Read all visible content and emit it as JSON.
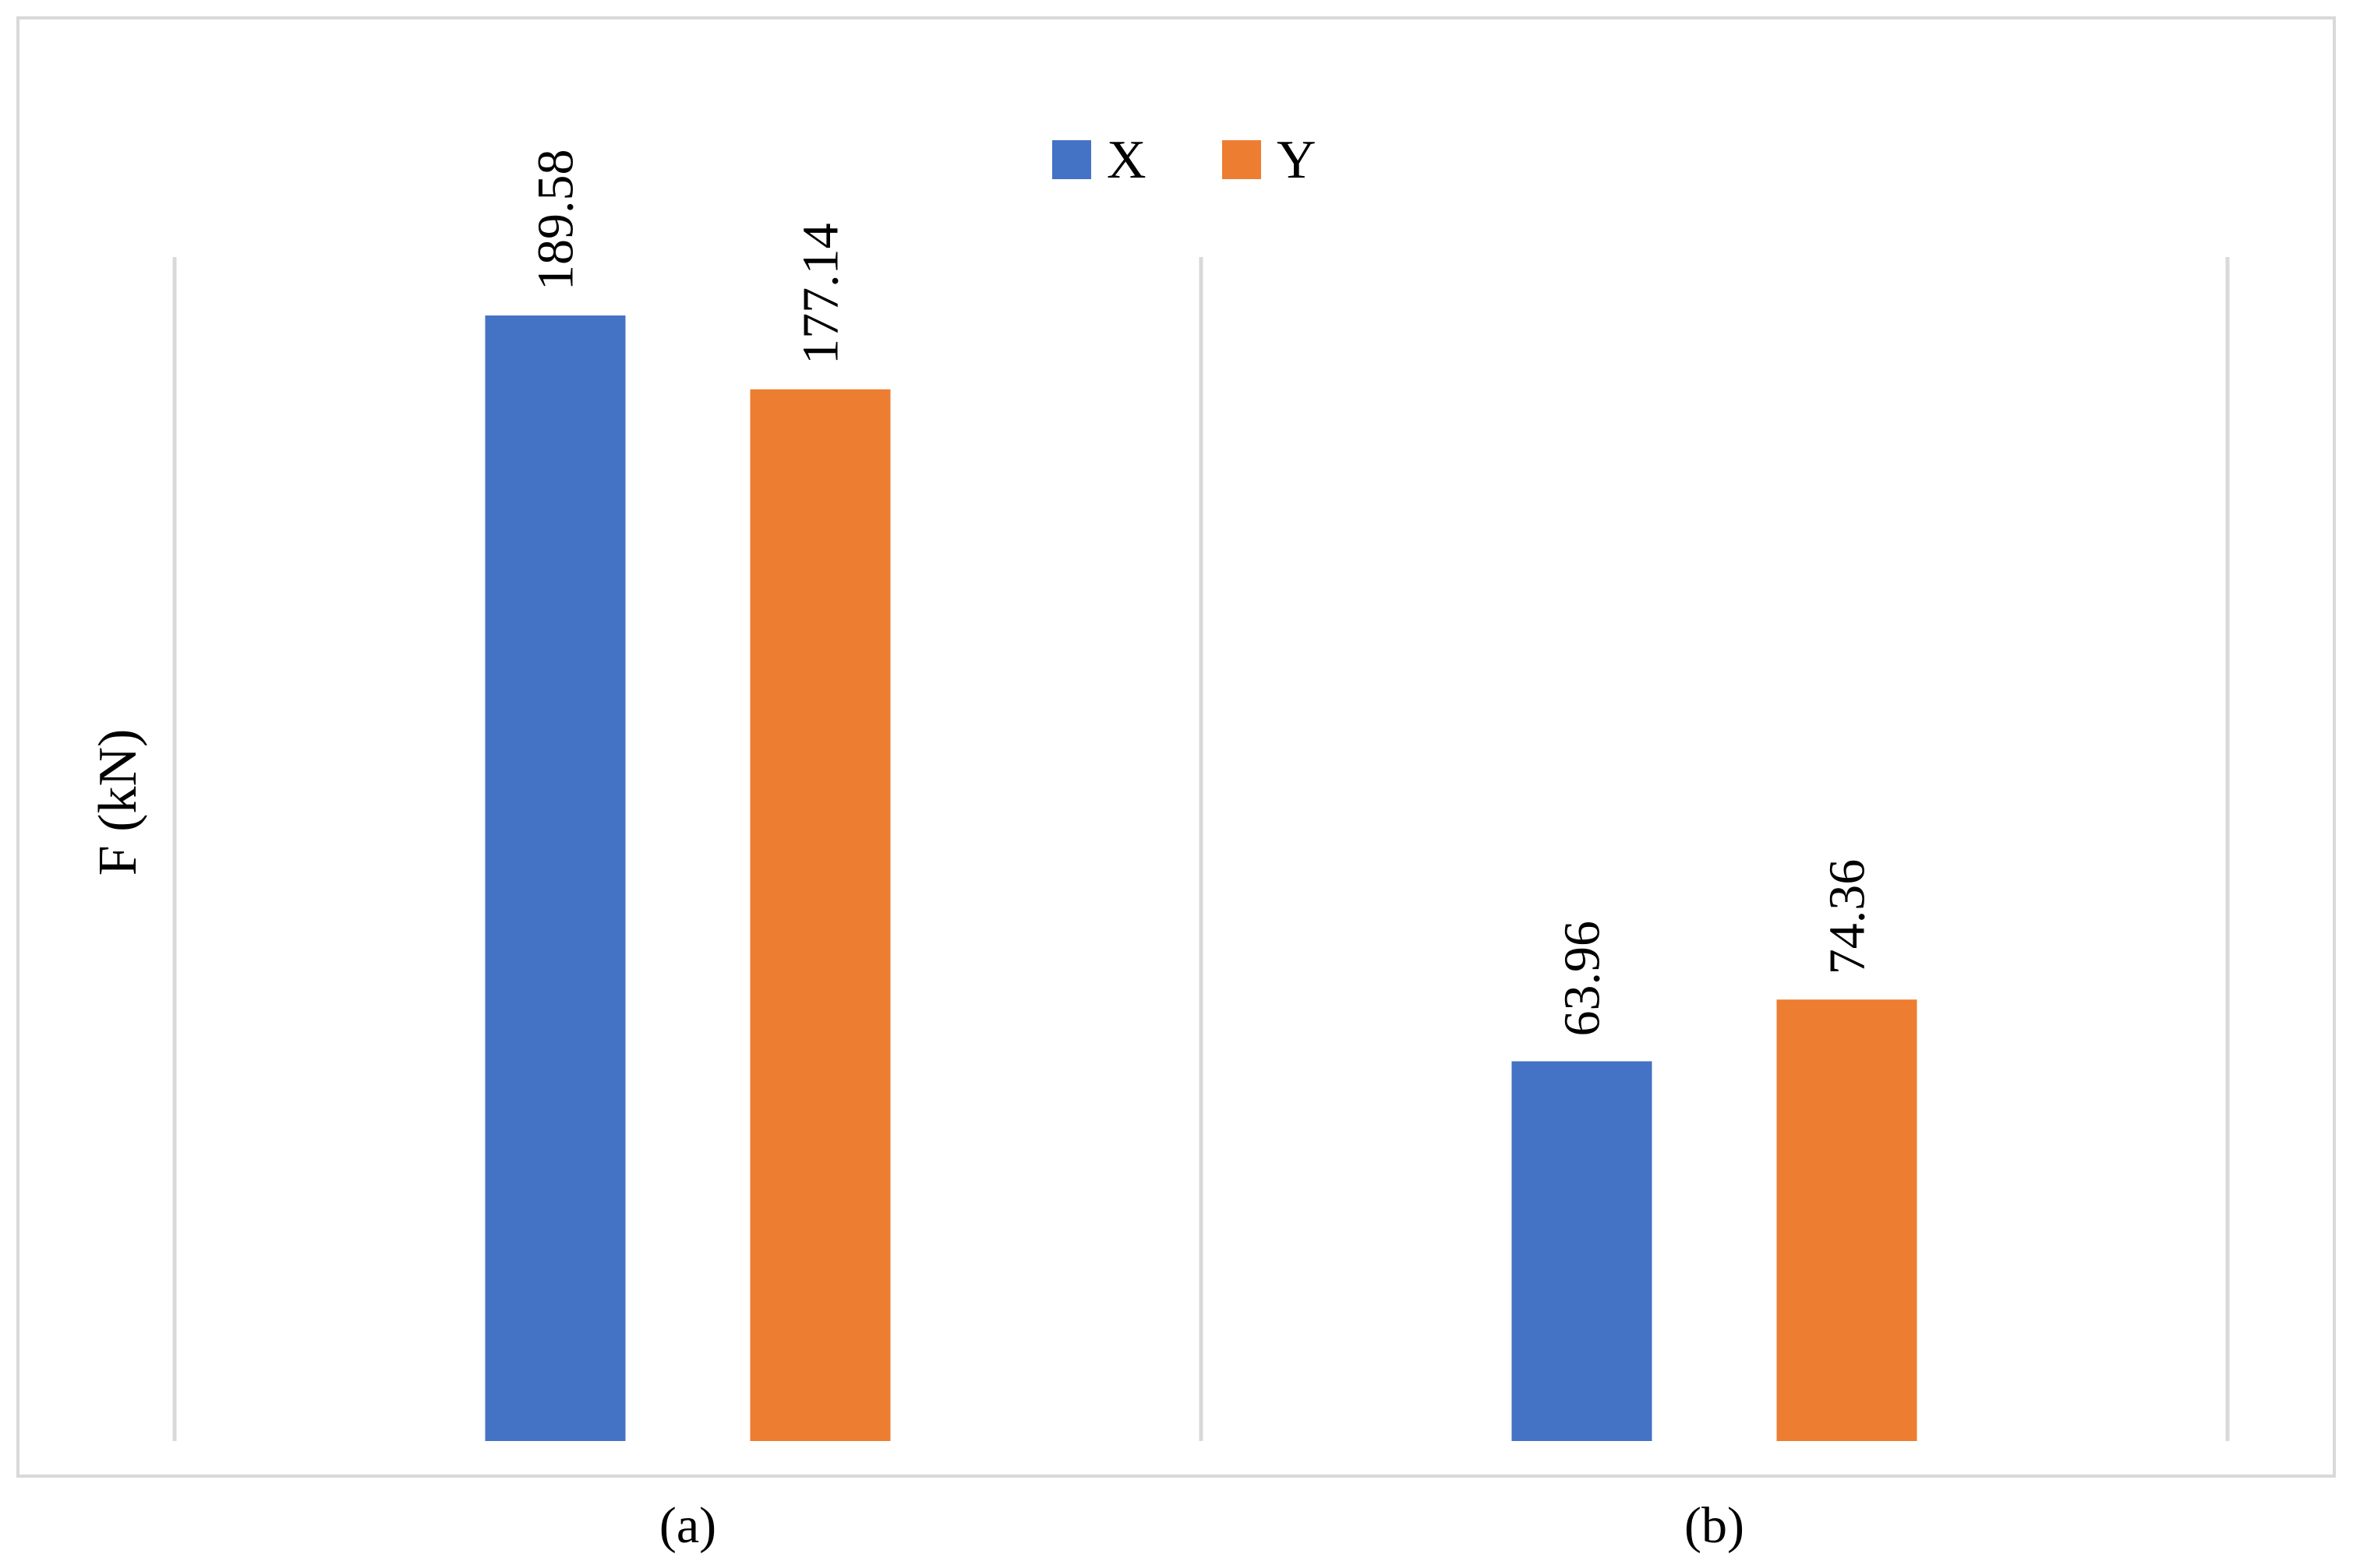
{
  "chart_data": {
    "type": "bar",
    "categories": [
      "(a)",
      "(b)"
    ],
    "series": [
      {
        "name": "X",
        "values": [
          189.58,
          63.96
        ],
        "color": "#4472C4"
      },
      {
        "name": "Y",
        "values": [
          177.14,
          74.36
        ],
        "color": "#ED7D31"
      }
    ],
    "ylabel": "F (kN)",
    "ylim": [
      0,
      200
    ],
    "legend_position": "top-center",
    "grid": false,
    "category_separators": true
  }
}
